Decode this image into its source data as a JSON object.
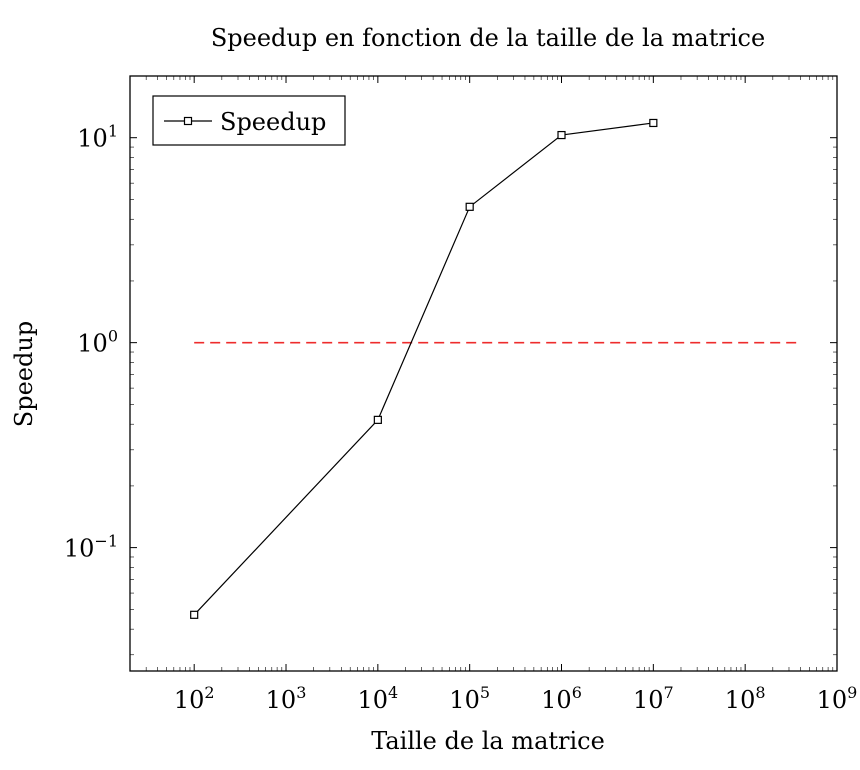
{
  "chart_data": {
    "type": "line",
    "title": "Speedup en fonction de la taille de la matrice",
    "xlabel": "Taille de la matrice",
    "ylabel": "Speedup",
    "x_scale": "log",
    "y_scale": "log",
    "xlim": [
      20,
      1000000000
    ],
    "ylim": [
      0.025,
      20
    ],
    "x_ticks": [
      {
        "value": 100,
        "mantissa": "10",
        "exp": "2"
      },
      {
        "value": 1000,
        "mantissa": "10",
        "exp": "3"
      },
      {
        "value": 10000,
        "mantissa": "10",
        "exp": "4"
      },
      {
        "value": 100000,
        "mantissa": "10",
        "exp": "5"
      },
      {
        "value": 1000000,
        "mantissa": "10",
        "exp": "6"
      },
      {
        "value": 10000000,
        "mantissa": "10",
        "exp": "7"
      },
      {
        "value": 100000000,
        "mantissa": "10",
        "exp": "8"
      },
      {
        "value": 1000000000,
        "mantissa": "10",
        "exp": "9"
      }
    ],
    "y_ticks": [
      {
        "value": 0.1,
        "mantissa": "10",
        "exp": "−1"
      },
      {
        "value": 1,
        "mantissa": "10",
        "exp": "0"
      },
      {
        "value": 10,
        "mantissa": "10",
        "exp": "1"
      }
    ],
    "series": [
      {
        "name": "Speedup",
        "color": "#000000",
        "marker": "square",
        "x": [
          100,
          10000,
          100000,
          1000000,
          10000000
        ],
        "y": [
          0.047,
          0.42,
          4.6,
          10.3,
          11.8
        ]
      }
    ],
    "reference_line": {
      "y": 1,
      "x_range": [
        100,
        400000000
      ],
      "color": "#ee2c2c",
      "style": "dashed"
    },
    "legend": {
      "position": "top-left"
    },
    "grid": false
  }
}
